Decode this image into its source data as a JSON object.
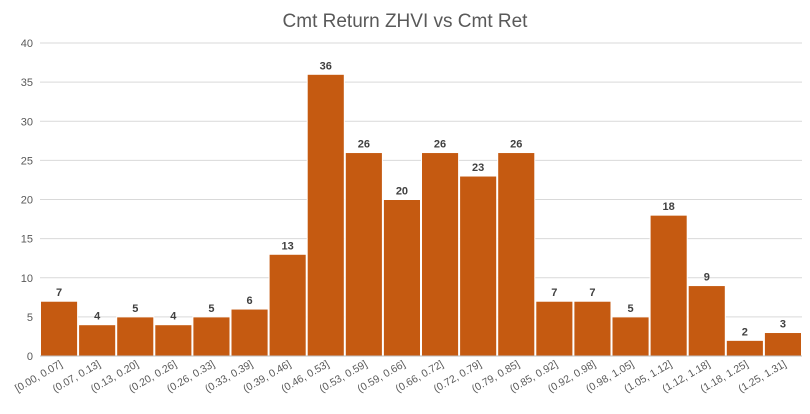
{
  "chart_data": {
    "type": "bar",
    "title": "Cmt Return ZHVI vs Cmt Ret",
    "xlabel": "",
    "ylabel": "",
    "ylim": [
      0,
      40
    ],
    "yticks": [
      0,
      5,
      10,
      15,
      20,
      25,
      30,
      35,
      40
    ],
    "grid": true,
    "legend": "none",
    "bar_color": "#C55A11",
    "categories": [
      "[0.00, 0.07]",
      "(0.07, 0.13]",
      "(0.13, 0.20]",
      "(0.20, 0.26]",
      "(0.26, 0.33]",
      "(0.33, 0.39]",
      "(0.39, 0.46]",
      "(0.46, 0.53]",
      "(0.53, 0.59]",
      "(0.59, 0.66]",
      "(0.66, 0.72]",
      "(0.72, 0.79]",
      "(0.79, 0.85]",
      "(0.85, 0.92]",
      "(0.92, 0.98]",
      "(0.98, 1.05]",
      "(1.05, 1.12]",
      "(1.12, 1.18]",
      "(1.18, 1.25]",
      "(1.25, 1.31]"
    ],
    "values": [
      7,
      4,
      5,
      4,
      5,
      6,
      13,
      36,
      26,
      20,
      26,
      23,
      26,
      7,
      7,
      5,
      18,
      9,
      2,
      3
    ]
  }
}
